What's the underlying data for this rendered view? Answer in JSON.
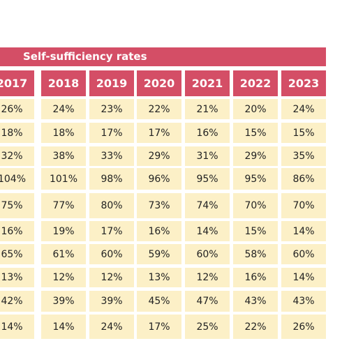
{
  "table": {
    "title": "Self-sufficiency rates",
    "years": [
      "2017",
      "2018",
      "2019",
      "2020",
      "2021",
      "2022",
      "2023"
    ],
    "rows": [
      [
        "26%",
        "24%",
        "23%",
        "22%",
        "21%",
        "20%",
        "24%"
      ],
      [
        "18%",
        "18%",
        "17%",
        "17%",
        "16%",
        "15%",
        "15%"
      ],
      [
        "32%",
        "38%",
        "33%",
        "29%",
        "31%",
        "29%",
        "35%"
      ],
      [
        "104%",
        "101%",
        "98%",
        "96%",
        "95%",
        "95%",
        "86%"
      ],
      [
        "75%",
        "77%",
        "80%",
        "73%",
        "74%",
        "70%",
        "70%"
      ],
      [
        "16%",
        "19%",
        "17%",
        "16%",
        "14%",
        "15%",
        "14%"
      ],
      [
        "65%",
        "61%",
        "60%",
        "59%",
        "60%",
        "58%",
        "60%"
      ],
      [
        "13%",
        "12%",
        "12%",
        "13%",
        "12%",
        "16%",
        "14%"
      ],
      [
        "42%",
        "39%",
        "39%",
        "45%",
        "47%",
        "43%",
        "43%"
      ],
      [
        "14%",
        "14%",
        "24%",
        "17%",
        "25%",
        "22%",
        "26%"
      ]
    ]
  }
}
